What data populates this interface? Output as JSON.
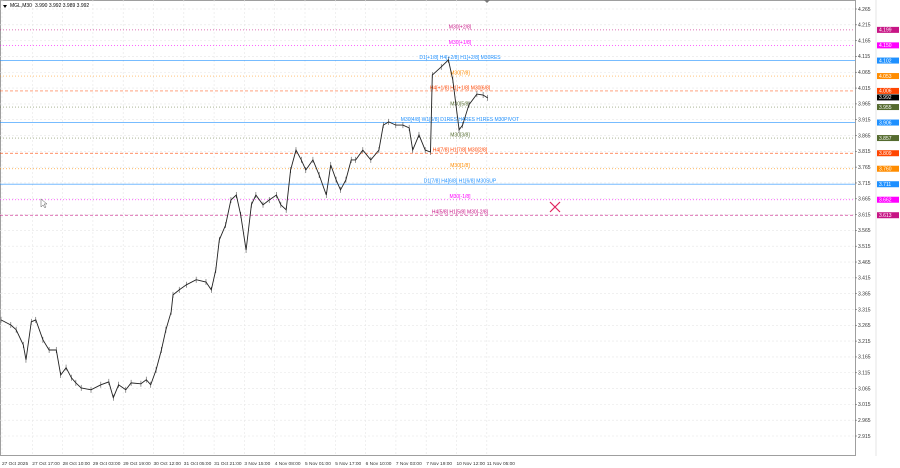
{
  "header": {
    "symbol_timeframe": "MGL,M30",
    "ohlc": "3.990 3.992 3.989 3.992"
  },
  "chart_data": {
    "type": "line",
    "title": "MGL,M30",
    "xlabel": "",
    "ylabel": "",
    "ylim": [
      2.915,
      4.265
    ],
    "grid": true,
    "y_ticks": [
      "4.265",
      "4.215",
      "4.165",
      "4.115",
      "4.065",
      "4.015",
      "3.965",
      "3.915",
      "3.865",
      "3.815",
      "3.765",
      "3.715",
      "3.665",
      "3.615",
      "3.565",
      "3.515",
      "3.465",
      "3.415",
      "3.365",
      "3.315",
      "3.265",
      "3.215",
      "3.165",
      "3.115",
      "3.065",
      "3.015",
      "2.965",
      "2.915"
    ],
    "x_ticks": [
      "27 Oct 2025",
      "27 Oct 17:00",
      "28 Oct 10:00",
      "29 Oct 03:00",
      "29 Oct 19:00",
      "30 Oct 12:00",
      "31 Oct 05:00",
      "31 Oct 21:00",
      "3 Nov 15:00",
      "4 Nov 08:00",
      "5 Nov 01:00",
      "5 Nov 17:00",
      "6 Nov 10:00",
      "7 Nov 03:00",
      "7 Nov 19:00",
      "10 Nov 12:00",
      "11 Nov 05:00"
    ],
    "series": [
      {
        "bars": [
          0,
          11,
          17,
          25,
          28,
          34,
          39,
          47,
          54,
          62,
          67,
          73,
          79,
          84,
          90,
          101,
          112,
          121,
          126,
          132,
          140,
          146,
          157,
          163,
          168,
          174,
          180,
          185,
          191,
          193,
          200,
          208,
          219,
          230,
          236,
          241,
          245,
          252,
          258,
          264,
          269,
          275,
          281,
          286,
          294,
          301,
          309,
          314,
          320,
          325,
          331,
          337,
          342,
          350,
          357,
          365,
          370,
          376,
          381,
          387,
          393,
          398,
          406,
          415,
          424,
          429,
          435,
          443,
          451,
          458,
          462,
          469,
          476,
          482,
          484,
          494,
          502,
          507,
          514,
          518,
          525,
          534,
          541,
          546
        ],
        "close": [
          3.282,
          3.266,
          3.251,
          3.203,
          3.156,
          3.276,
          3.282,
          3.219,
          3.187,
          3.187,
          3.108,
          3.131,
          3.099,
          3.083,
          3.067,
          3.061,
          3.077,
          3.086,
          3.036,
          3.077,
          3.061,
          3.083,
          3.08,
          3.093,
          3.077,
          3.124,
          3.187,
          3.251,
          3.308,
          3.361,
          3.377,
          3.393,
          3.409,
          3.402,
          3.377,
          3.44,
          3.535,
          3.582,
          3.661,
          3.677,
          3.614,
          3.503,
          3.646,
          3.677,
          3.646,
          3.661,
          3.677,
          3.646,
          3.63,
          3.756,
          3.819,
          3.788,
          3.756,
          3.788,
          3.74,
          3.677,
          3.772,
          3.725,
          3.693,
          3.725,
          3.788,
          3.788,
          3.819,
          3.788,
          3.819,
          3.898,
          3.908,
          3.898,
          3.898,
          3.889,
          3.819,
          3.867,
          3.819,
          3.813,
          4.056,
          4.082,
          4.104,
          4.041,
          3.883,
          3.898,
          3.962,
          3.996,
          3.993,
          3.984
        ]
      }
    ],
    "current_price": {
      "value": 3.992,
      "label": "3.992",
      "color": "#000000"
    },
    "levels": [
      {
        "label": "M30[+2/8]",
        "price": 4.199,
        "tag": "4.199",
        "color": "#c71585",
        "style": "dotted"
      },
      {
        "label": "M30[+1/8]",
        "price": 4.15,
        "tag": "4.150",
        "color": "#ff00ff",
        "style": "dotted"
      },
      {
        "label": "D1[+1/8] H4[+2/8] H1[+2/8] M30RES",
        "price": 4.102,
        "tag": "4.102",
        "color": "#1e90ff",
        "style": "solid"
      },
      {
        "label": "M30[7/8]",
        "price": 4.053,
        "tag": "4.053",
        "color": "#ff8c00",
        "style": "dotted"
      },
      {
        "label": "H4[+1/8] H1[+1/8] M30[6/8]",
        "price": 4.006,
        "tag": "4.006",
        "color": "#ff4500",
        "style": "dashed"
      },
      {
        "label": "M30[5/8]",
        "price": 3.955,
        "tag": "3.955",
        "color": "#556b2f",
        "style": "dotted"
      },
      {
        "label": "M30[4/8] W1[6/8] D1RES H4RES H1RES M30PIVOT",
        "price": 3.906,
        "tag": "3.906",
        "color": "#1e90ff",
        "style": "solid"
      },
      {
        "label": "M30[3/8]",
        "price": 3.857,
        "tag": "3.857",
        "color": "#556b2f",
        "style": "dotted"
      },
      {
        "label": "H4[7/8] H1[7/8] M30[2/8]",
        "price": 3.809,
        "tag": "3.809",
        "color": "#ff4500",
        "style": "dashed"
      },
      {
        "label": "M30[1/8]",
        "price": 3.76,
        "tag": "3.760",
        "color": "#ff8c00",
        "style": "dotted"
      },
      {
        "label": "D1[7/8] H4[6/8] H1[6/8] M30SUP",
        "price": 3.711,
        "tag": "3.711",
        "color": "#1e90ff",
        "style": "solid"
      },
      {
        "label": "M30[-1/8]",
        "price": 3.662,
        "tag": "3.662",
        "color": "#ff00ff",
        "style": "dotted"
      },
      {
        "label": "H4[5/8] H1[5/8] M30[-2/8]",
        "price": 3.613,
        "tag": "3.613",
        "color": "#c71585",
        "style": "dashed"
      }
    ],
    "marker": {
      "icon": "x-mark-icon",
      "color": "#e0245e"
    }
  }
}
